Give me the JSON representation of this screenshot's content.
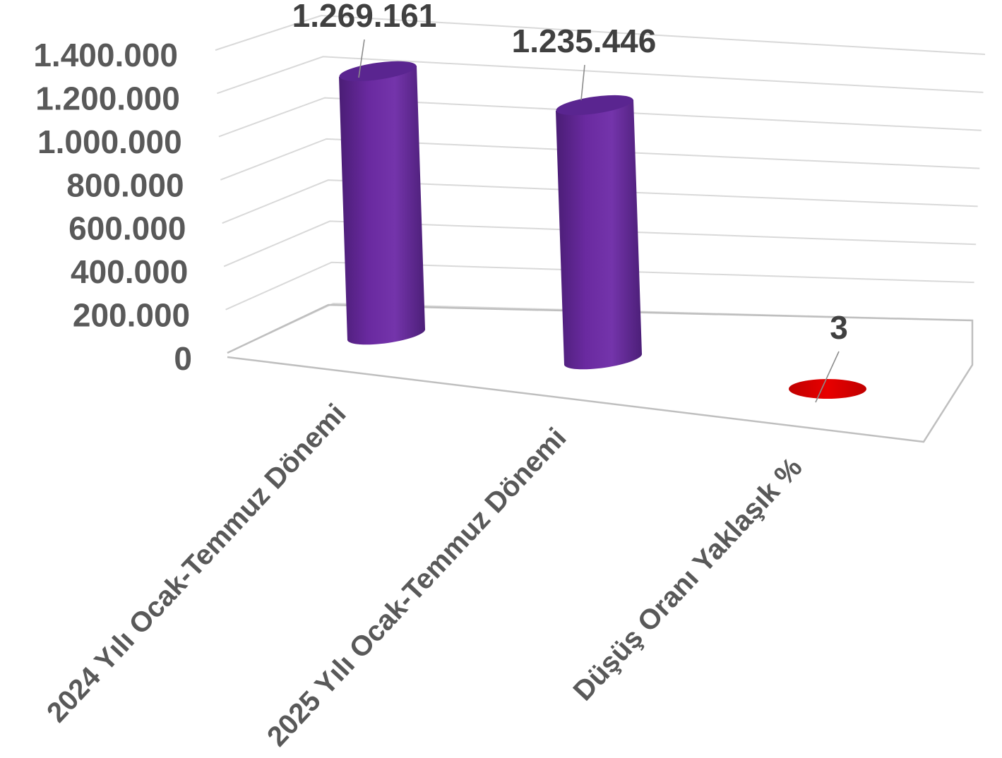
{
  "chart_data": {
    "type": "bar",
    "style": "3d-cylinder",
    "categories": [
      "2024 Yılı Ocak-Temmuz Dönemi",
      "2025 Yılı Ocak-Temmuz Dönemi",
      "Düşüş Oranı Yaklaşık %"
    ],
    "values": [
      1269161,
      1235446,
      3
    ],
    "data_labels": [
      "1.269.161",
      "1.235.446",
      "3"
    ],
    "y_ticks": [
      "0",
      "200.000",
      "400.000",
      "600.000",
      "800.000",
      "1.000.000",
      "1.200.000",
      "1.400.000"
    ],
    "ylim": [
      0,
      1400000
    ],
    "grid": true,
    "legend": "none",
    "colors": [
      "#7030a0",
      "#7030a0",
      "#e00000"
    ]
  }
}
